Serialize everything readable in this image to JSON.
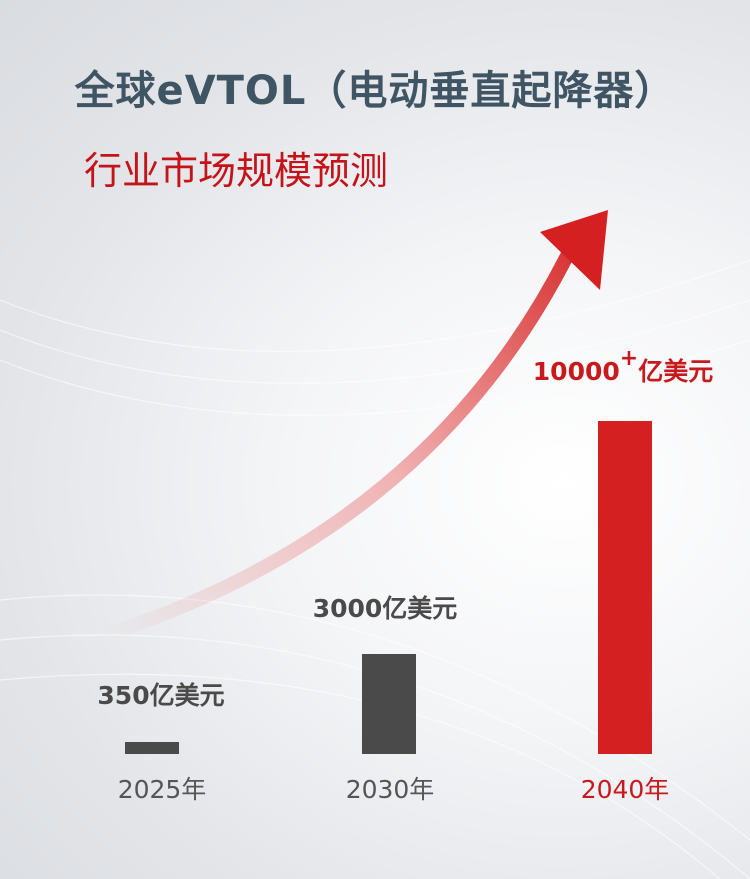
{
  "title": "全球eVTOL（电动垂直起降器）",
  "subtitle": "行业市场规模预测",
  "colors": {
    "title": "#3f5563",
    "accent": "#d42020",
    "bar_gray": "#4a4a4a",
    "label_gray": "#4a4a4a"
  },
  "chart_data": {
    "type": "bar",
    "categories": [
      "2025年",
      "2030年",
      "2040年"
    ],
    "values": [
      350,
      3000,
      10000
    ],
    "data_labels": [
      "350亿美元",
      "3000亿美元",
      "10000"
    ],
    "data_label_suffix_plus": "+",
    "data_label_unit": "亿美元",
    "unit": "亿美元",
    "ylim": [
      0,
      10000
    ],
    "bar_colors": [
      "#4a4a4a",
      "#4a4a4a",
      "#d42020"
    ],
    "grid": false,
    "annotation": "rising-arrow"
  }
}
